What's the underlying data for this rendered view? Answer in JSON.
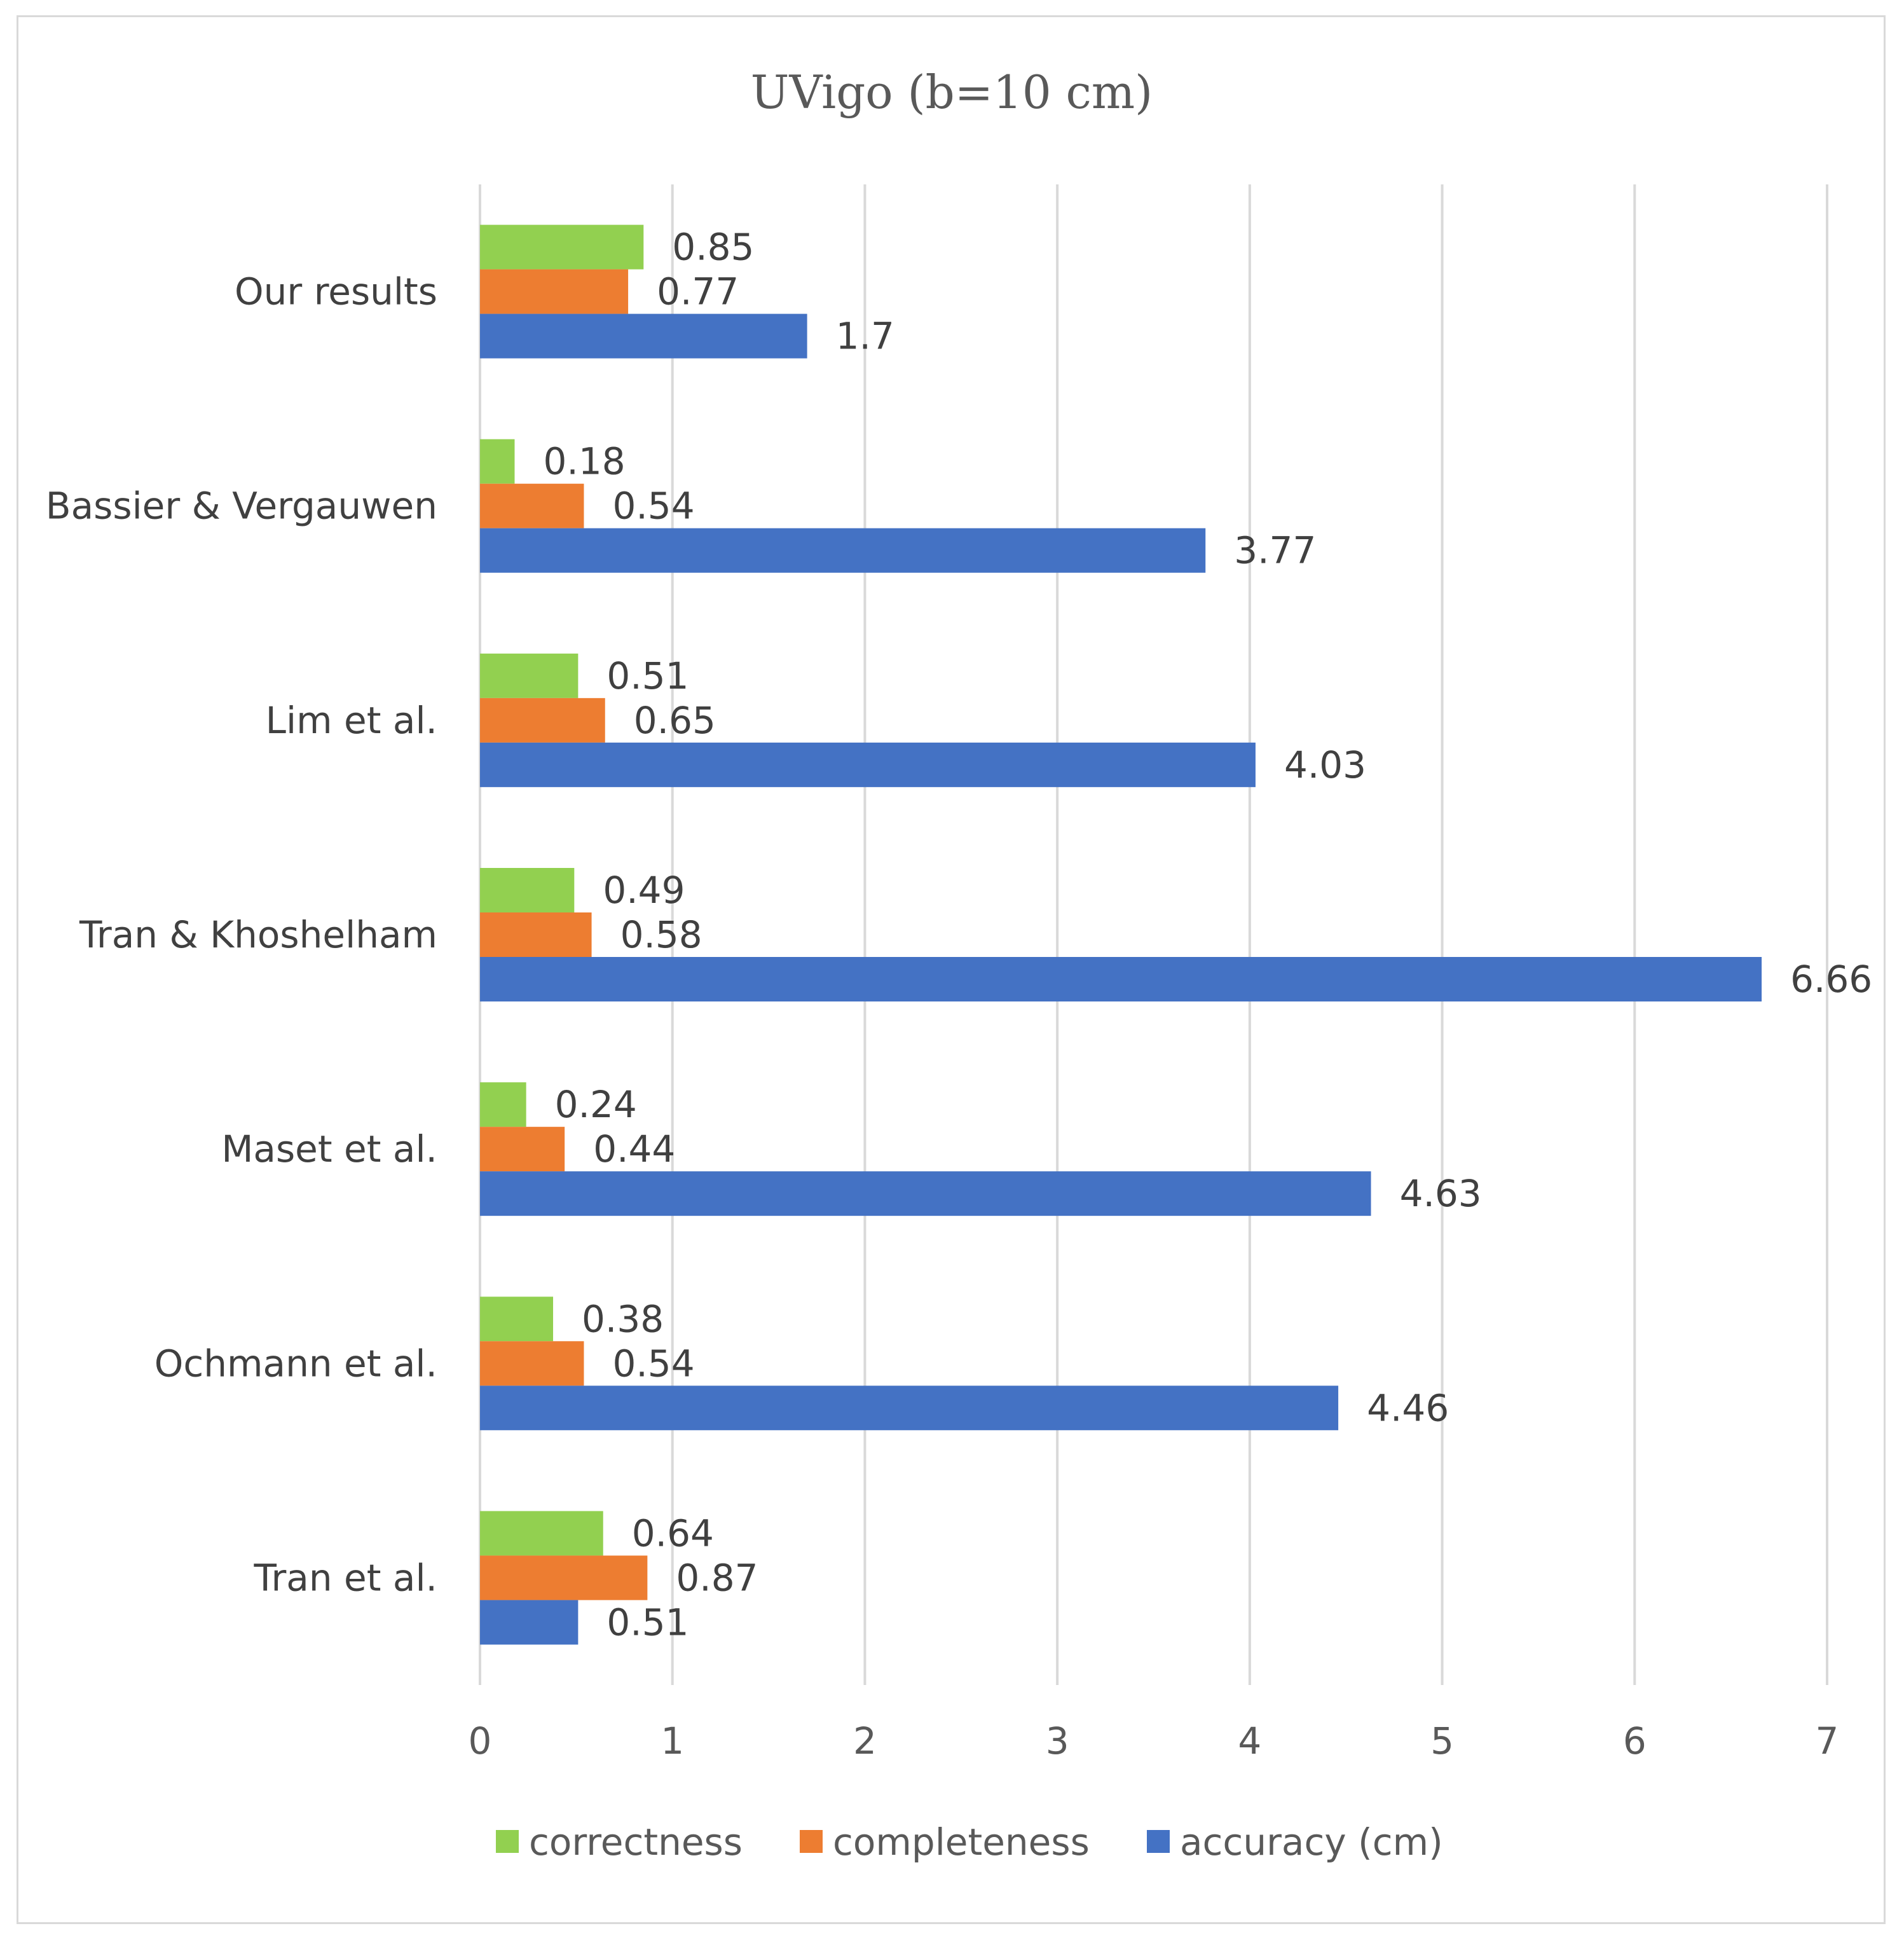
{
  "chart_data": {
    "type": "bar",
    "orientation": "horizontal",
    "title": "UVigo (b=10 cm)",
    "categories": [
      "Our results",
      "Bassier & Vergauwen",
      "Lim et al.",
      "Tran & Khoshelham",
      "Maset et al.",
      "Ochmann et al.",
      "Tran et al."
    ],
    "series": [
      {
        "name": "correctness",
        "color": "#92d050",
        "values": [
          0.85,
          0.18,
          0.51,
          0.49,
          0.24,
          0.38,
          0.64
        ],
        "labels": [
          "0.85",
          "0.18",
          "0.51",
          "0.49",
          "0.24",
          "0.38",
          "0.64"
        ]
      },
      {
        "name": "completeness",
        "color": "#ed7d31",
        "values": [
          0.77,
          0.54,
          0.65,
          0.58,
          0.44,
          0.54,
          0.87
        ],
        "labels": [
          "0.77",
          "0.54",
          "0.65",
          "0.58",
          "0.44",
          "0.54",
          "0.87"
        ]
      },
      {
        "name": "accuracy (cm)",
        "color": "#4472c4",
        "values": [
          1.7,
          3.77,
          4.03,
          6.66,
          4.63,
          4.46,
          0.51
        ],
        "labels": [
          "1.7",
          "3.77",
          "4.03",
          "6.66",
          "4.63",
          "4.46",
          "0.51"
        ]
      }
    ],
    "xlim": [
      0,
      7
    ],
    "xticks": [
      "0",
      "1",
      "2",
      "3",
      "4",
      "5",
      "6",
      "7"
    ],
    "xlabel": "",
    "ylabel": "",
    "grid": true,
    "grid_color": "#d9d9d9",
    "legend_position": "bottom"
  }
}
